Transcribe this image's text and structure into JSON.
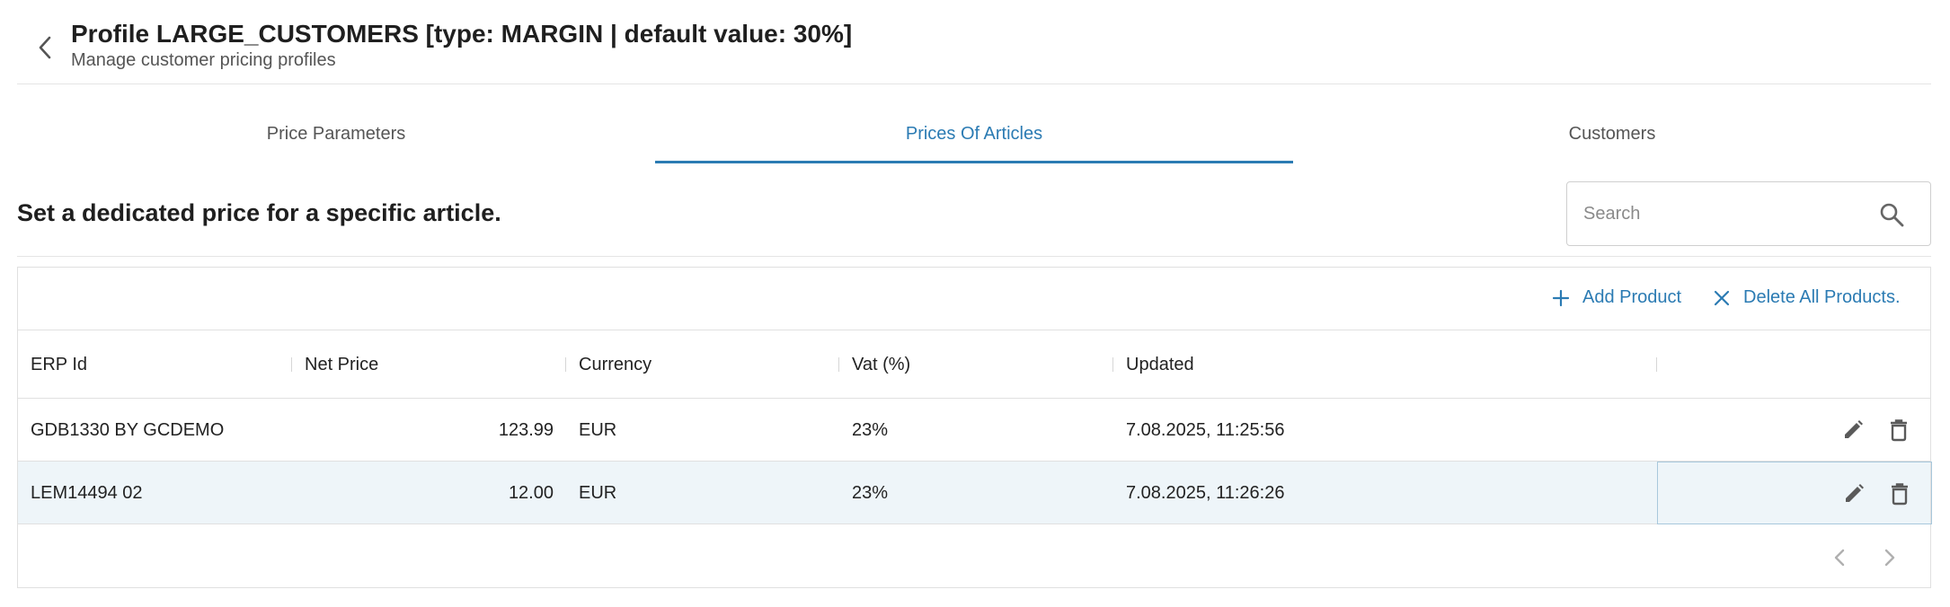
{
  "header": {
    "title": "Profile LARGE_CUSTOMERS [type: MARGIN | default value: 30%]",
    "subtitle": "Manage customer pricing profiles"
  },
  "tabs": [
    {
      "label": "Price Parameters",
      "active": false
    },
    {
      "label": "Prices Of Articles",
      "active": true
    },
    {
      "label": "Customers",
      "active": false
    }
  ],
  "section": {
    "title": "Set a dedicated price for a specific article."
  },
  "search": {
    "placeholder": "Search",
    "value": ""
  },
  "toolbar": {
    "add_label": "Add Product",
    "delete_all_label": "Delete All Products."
  },
  "table": {
    "columns": [
      "ERP Id",
      "Net Price",
      "Currency",
      "Vat (%)",
      "Updated"
    ],
    "rows": [
      {
        "erp_id": "GDB1330 BY GCDEMO",
        "net_price": "123.99",
        "currency": "EUR",
        "vat": "23%",
        "updated": "7.08.2025, 11:25:56",
        "selected": false
      },
      {
        "erp_id": "LEM14494 02",
        "net_price": "12.00",
        "currency": "EUR",
        "vat": "23%",
        "updated": "7.08.2025, 11:26:26",
        "selected": true
      }
    ]
  },
  "colors": {
    "accent": "#2b7bb3",
    "selected_row": "#eef5f9",
    "border": "#e0e0e0"
  },
  "icons": {
    "back": "chevron-left-icon",
    "search": "search-icon",
    "add": "plus-icon",
    "delete_all": "close-icon",
    "edit": "pencil-icon",
    "delete": "trash-icon",
    "prev": "chevron-left-icon",
    "next": "chevron-right-icon"
  }
}
